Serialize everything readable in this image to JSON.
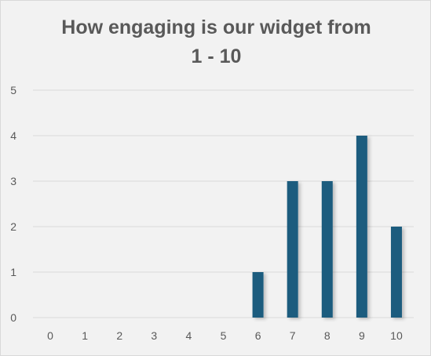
{
  "chart_data": {
    "type": "bar",
    "title_lines": [
      "How engaging is our widget from",
      "1 - 10"
    ],
    "categories": [
      "0",
      "1",
      "2",
      "3",
      "4",
      "5",
      "6",
      "7",
      "8",
      "9",
      "10"
    ],
    "values": [
      0,
      0,
      0,
      0,
      0,
      0,
      1,
      3,
      3,
      4,
      2
    ],
    "y_ticks": [
      "0",
      "1",
      "2",
      "3",
      "4",
      "5"
    ],
    "ylim": [
      0,
      5
    ],
    "grid": true,
    "legend": "none",
    "bar_color": "#1a5b7e",
    "grid_color": "#d9d9d9",
    "text_color": "#595959",
    "background_color": "#f2f2f2"
  }
}
